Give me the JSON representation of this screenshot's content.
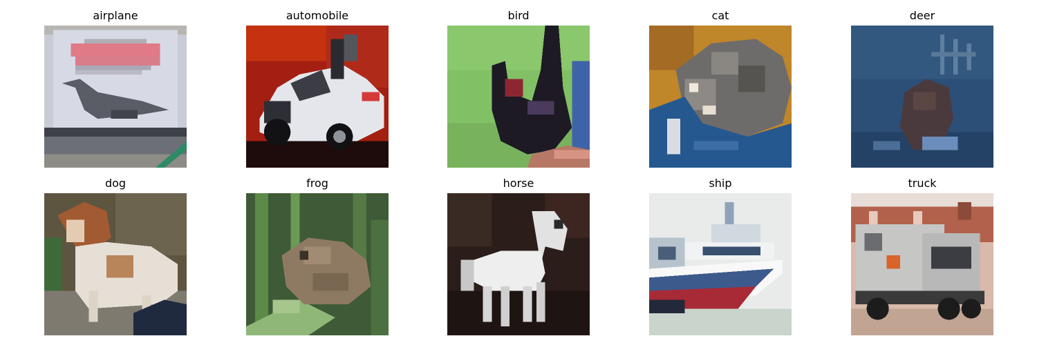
{
  "figure": {
    "rows": [
      [
        {
          "label": "airplane",
          "image_alt": "concorde-airplane-photo"
        },
        {
          "label": "automobile",
          "image_alt": "white-car-photo"
        },
        {
          "label": "bird",
          "image_alt": "black-bird-photo"
        },
        {
          "label": "cat",
          "image_alt": "tabby-cat-photo"
        },
        {
          "label": "deer",
          "image_alt": "deer-in-water-photo"
        }
      ],
      [
        {
          "label": "dog",
          "image_alt": "dog-photo"
        },
        {
          "label": "frog",
          "image_alt": "frog-in-grass-photo"
        },
        {
          "label": "horse",
          "image_alt": "white-horse-photo"
        },
        {
          "label": "ship",
          "image_alt": "ship-photo"
        },
        {
          "label": "truck",
          "image_alt": "truck-photo"
        }
      ]
    ]
  }
}
